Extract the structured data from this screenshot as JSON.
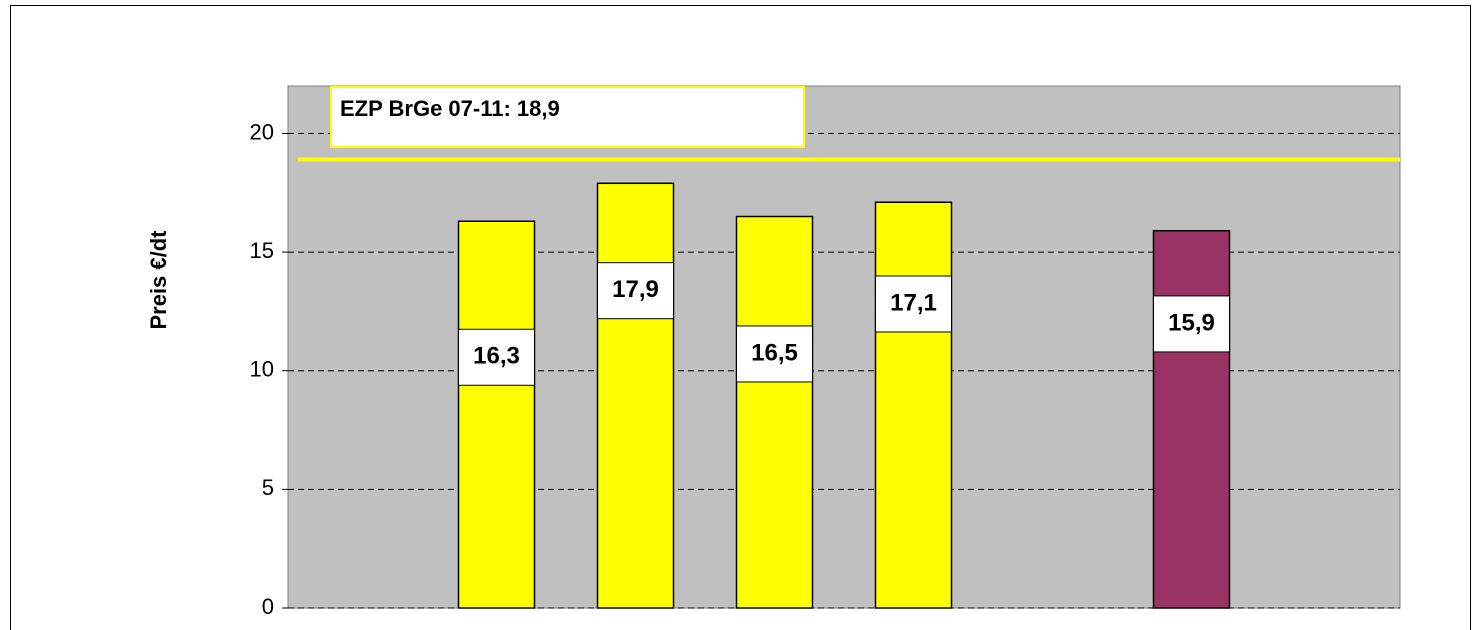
{
  "chart_data": {
    "type": "bar",
    "categories": [
      null,
      null,
      null,
      null,
      null,
      null,
      null,
      null
    ],
    "values": [
      null,
      16.3,
      17.9,
      16.5,
      17.1,
      null,
      15.9,
      null
    ],
    "value_labels": [
      null,
      "16,3",
      "17,9",
      "16,5",
      "17,1",
      null,
      "15,9",
      null
    ],
    "colors": [
      null,
      "#ffff00",
      "#ffff00",
      "#ffff00",
      "#ffff00",
      null,
      "#993366",
      null
    ],
    "ylabel": "Preis  €/dt",
    "ylim": [
      0,
      22
    ],
    "yticks": [
      0,
      5,
      10,
      15,
      20
    ],
    "grid": true,
    "reference_line": {
      "value": 18.9,
      "label": "EZP BrGe 07-11: 18,9",
      "color": "#ffff00"
    }
  }
}
